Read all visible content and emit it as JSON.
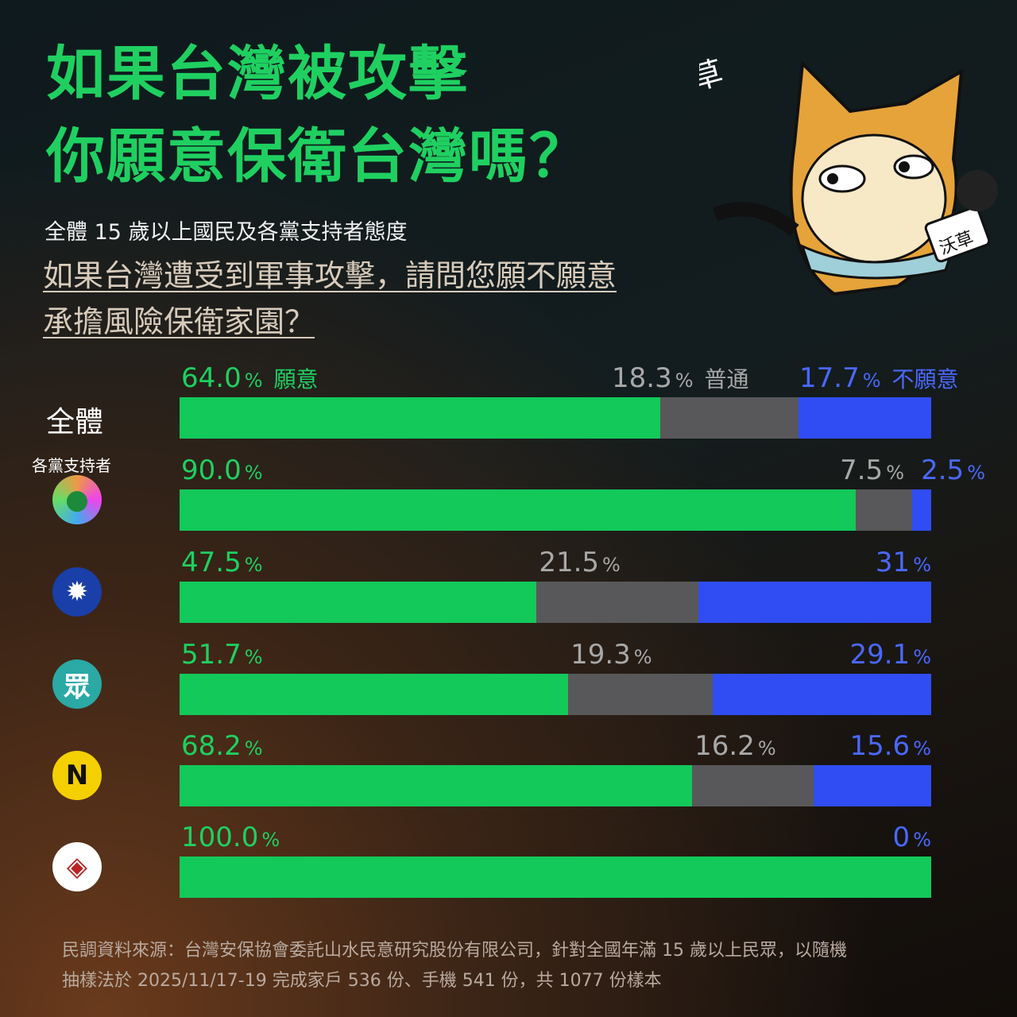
{
  "header": {
    "title_line1": "如果台灣被攻擊",
    "title_line2": "你願意保衛台灣嗎？",
    "subtitle": "全體 15 歲以上國民及各黨支持者態度",
    "question_line1": "如果台灣遭受到軍事攻擊，請問您願不願意",
    "question_line2": "承擔風險保衛家園？",
    "logo_text": "沃草",
    "mic_text": "沃草"
  },
  "chart_data": {
    "type": "bar",
    "stacked": true,
    "orientation": "horizontal",
    "unit": "%",
    "series_names": [
      "願意",
      "普通",
      "不願意"
    ],
    "colors": {
      "willing": "#12c95a",
      "neutral": "#58585a",
      "unwilling": "#2f4df2"
    },
    "group_label": "各黨支持者",
    "rows": [
      {
        "label": "全體",
        "icon": "overall",
        "values": [
          64.0,
          18.3,
          17.7
        ],
        "display": [
          "64.0",
          "18.3",
          "17.7"
        ]
      },
      {
        "label": "",
        "icon": "dpp-flag-icon",
        "values": [
          90.0,
          7.5,
          2.5
        ],
        "display": [
          "90.0",
          "7.5",
          "2.5"
        ]
      },
      {
        "label": "",
        "icon": "kmt-sun-icon",
        "values": [
          47.5,
          21.5,
          31
        ],
        "display": [
          "47.5",
          "21.5",
          "31"
        ]
      },
      {
        "label": "",
        "icon": "tpp-icon",
        "values": [
          51.7,
          19.3,
          29.1
        ],
        "display": [
          "51.7",
          "19.3",
          "29.1"
        ]
      },
      {
        "label": "",
        "icon": "npp-icon",
        "values": [
          68.2,
          16.2,
          15.6
        ],
        "display": [
          "68.2",
          "16.2",
          "15.6"
        ]
      },
      {
        "label": "",
        "icon": "statebuilding-party-icon",
        "values": [
          100.0,
          0,
          0
        ],
        "display": [
          "100.0",
          "",
          "0"
        ]
      }
    ]
  },
  "footer": {
    "line1": "民調資料來源：台灣安保協會委託山水民意研究股份有限公司，針對全國年滿 15 歲以上民眾，以隨機",
    "line2": "抽樣法於 2025/11/17-19 完成家戶 536 份、手機 541 份，共 1077 份樣本"
  }
}
